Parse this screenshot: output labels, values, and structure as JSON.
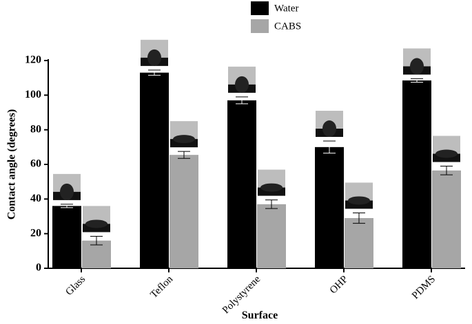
{
  "chart_data": {
    "type": "bar",
    "categories": [
      "Glass",
      "Teflon",
      "Polystyrene",
      "OHP",
      "PDMS"
    ],
    "series": [
      {
        "name": "Water",
        "color": "#000000",
        "values": [
          36,
          113,
          97,
          70,
          108.5
        ],
        "errors": [
          1,
          1.5,
          2,
          3.5,
          1
        ]
      },
      {
        "name": "CABS",
        "color": "#a6a6a6",
        "values": [
          16,
          65.5,
          37,
          29,
          56.5
        ],
        "errors": [
          2.5,
          2,
          2.5,
          3,
          2.5
        ]
      }
    ],
    "ylim": [
      0,
      120
    ],
    "yticks": [
      0,
      20,
      40,
      60,
      80,
      100,
      120
    ],
    "xlabel": "Surface",
    "ylabel": "Contact angle (degrees)",
    "legend": "top"
  }
}
